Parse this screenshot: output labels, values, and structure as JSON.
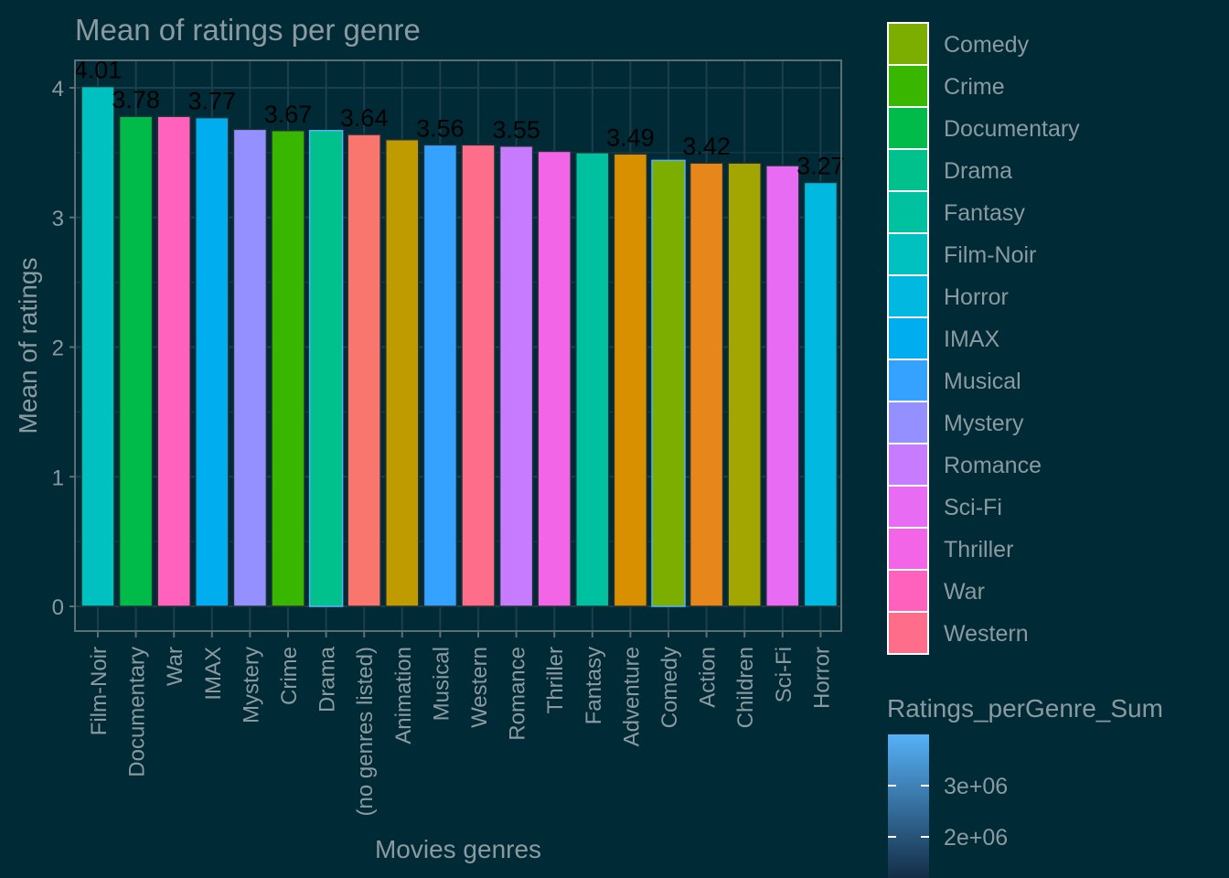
{
  "chart_data": {
    "type": "bar",
    "title": "Mean of ratings per genre",
    "xlabel": "Movies genres",
    "ylabel": "Mean of ratings",
    "ylim": [
      0,
      4.2
    ],
    "yticks": [
      0,
      1,
      2,
      3,
      4
    ],
    "grid": true,
    "categories": [
      "Film-Noir",
      "Documentary",
      "War",
      "IMAX",
      "Mystery",
      "Crime",
      "Drama",
      "(no genres listed)",
      "Animation",
      "Musical",
      "Western",
      "Romance",
      "Thriller",
      "Fantasy",
      "Adventure",
      "Comedy",
      "Action",
      "Children",
      "Sci-Fi",
      "Horror"
    ],
    "values": [
      4.01,
      3.78,
      3.78,
      3.77,
      3.68,
      3.67,
      3.67,
      3.64,
      3.6,
      3.56,
      3.56,
      3.55,
      3.51,
      3.5,
      3.49,
      3.44,
      3.42,
      3.42,
      3.4,
      3.27
    ],
    "data_labels": [
      "4.01",
      "3.78",
      "",
      "3.77",
      "",
      "3.67",
      "",
      "3.64",
      "",
      "3.56",
      "",
      "3.55",
      "",
      "",
      "3.49",
      "",
      "3.42",
      "",
      "",
      "3.27"
    ],
    "fill_colors": [
      "#00c0c0",
      "#00ba4a",
      "#ff62bc",
      "#00aeef",
      "#9590ff",
      "#39b600",
      "#00c08b",
      "#f8766d",
      "#c09b00",
      "#35a2ff",
      "#fe6e8a",
      "#c77cff",
      "#f265e7",
      "#00c19f",
      "#d89000",
      "#7cae00",
      "#e7861b",
      "#a3a500",
      "#e76bf3",
      "#00b8e0"
    ],
    "outline_colors": [
      "#1f2f33",
      "#1f2f33",
      "#1f2f33",
      "#1f2f33",
      "#1f2f33",
      "#1f2f33",
      "#56b1f7",
      "#1f2f33",
      "#1f2f33",
      "#1f2f33",
      "#1f2f33",
      "#1f2f33",
      "#1f2f33",
      "#1f2f33",
      "#1f2f33",
      "#56b1f7",
      "#1f2f33",
      "#1f2f33",
      "#1f2f33",
      "#1f2f33"
    ],
    "legend": {
      "placement": "right",
      "entries": [
        {
          "label": "Comedy",
          "color": "#7cae00"
        },
        {
          "label": "Crime",
          "color": "#39b600"
        },
        {
          "label": "Documentary",
          "color": "#00ba4a"
        },
        {
          "label": "Drama",
          "color": "#00c08b"
        },
        {
          "label": "Fantasy",
          "color": "#00c19f"
        },
        {
          "label": "Film-Noir",
          "color": "#00c0c0"
        },
        {
          "label": "Horror",
          "color": "#00b8e0"
        },
        {
          "label": "IMAX",
          "color": "#00aeef"
        },
        {
          "label": "Musical",
          "color": "#35a2ff"
        },
        {
          "label": "Mystery",
          "color": "#9590ff"
        },
        {
          "label": "Romance",
          "color": "#c77cff"
        },
        {
          "label": "Sci-Fi",
          "color": "#e76bf3"
        },
        {
          "label": "Thriller",
          "color": "#f265e7"
        },
        {
          "label": "War",
          "color": "#ff62bc"
        },
        {
          "label": "Western",
          "color": "#fe6e8a"
        }
      ]
    },
    "colorbar": {
      "title": "Ratings_perGenre_Sum",
      "tick_labels": [
        "3e+06",
        "2e+06"
      ],
      "colors": [
        "#56b1f7",
        "#132b43"
      ]
    }
  },
  "colors": {
    "background": "#002b36",
    "text": "#8a9aa0",
    "grid": "#1b3f4c",
    "axis": "#5d6f75",
    "data_label": "#000000"
  }
}
